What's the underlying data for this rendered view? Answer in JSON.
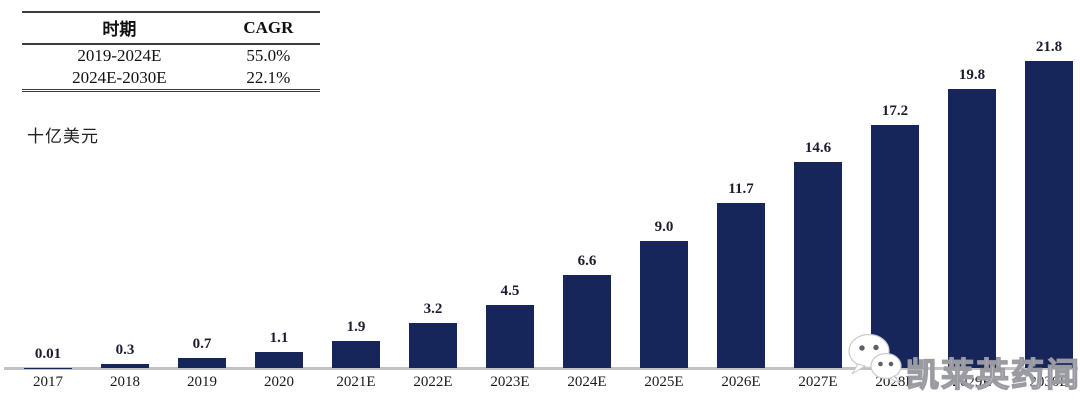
{
  "cagr_table": {
    "headers": [
      "时期",
      "CAGR"
    ],
    "rows": [
      [
        "2019-2024E",
        "55.0%"
      ],
      [
        "2024E-2030E",
        "22.1%"
      ]
    ]
  },
  "unit_label": "十亿美元",
  "chart_data": {
    "type": "bar",
    "title": "",
    "xlabel": "",
    "ylabel": "十亿美元",
    "ylim": [
      0,
      22
    ],
    "grid": false,
    "legend_position": "none",
    "bar_color": "#16265B",
    "categories": [
      "2017",
      "2018",
      "2019",
      "2020",
      "2021E",
      "2022E",
      "2023E",
      "2024E",
      "2025E",
      "2026E",
      "2027E",
      "2028E",
      "2029E",
      "2030E"
    ],
    "values": [
      0.01,
      0.3,
      0.7,
      1.1,
      1.9,
      3.2,
      4.5,
      6.6,
      9.0,
      11.7,
      14.6,
      17.2,
      19.8,
      21.8
    ],
    "value_labels": [
      "0.01",
      "0.3",
      "0.7",
      "1.1",
      "1.9",
      "3.2",
      "4.5",
      "6.6",
      "9.0",
      "11.7",
      "14.6",
      "17.2",
      "19.8",
      "21.8"
    ]
  },
  "watermark": {
    "icon": "wechat-icon",
    "text": "凯莱英药闻"
  }
}
